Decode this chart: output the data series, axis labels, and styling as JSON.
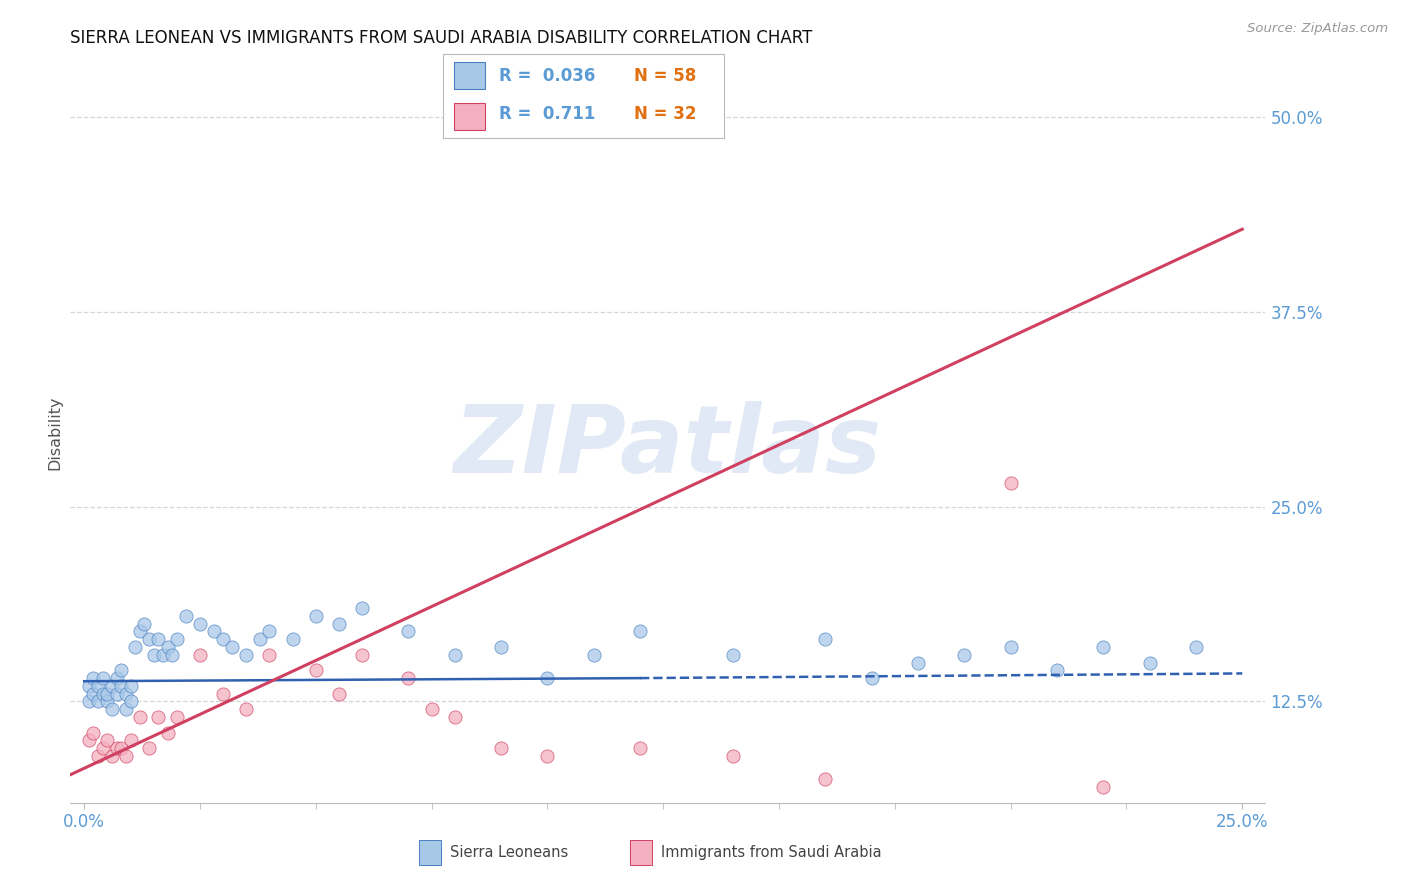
{
  "title": "SIERRA LEONEAN VS IMMIGRANTS FROM SAUDI ARABIA DISABILITY CORRELATION CHART",
  "source": "Source: ZipAtlas.com",
  "ylabel": "Disability",
  "yticks": [
    0.125,
    0.25,
    0.375,
    0.5
  ],
  "ytick_labels": [
    "12.5%",
    "25.0%",
    "37.5%",
    "50.0%"
  ],
  "xtick_left": "0.0%",
  "xtick_right": "25.0%",
  "xlim": [
    -0.003,
    0.255
  ],
  "ylim": [
    0.06,
    0.535
  ],
  "legend_r1": "R =  0.036",
  "legend_n1": "N = 58",
  "legend_r2": "R =  0.711",
  "legend_n2": "N = 32",
  "color_blue_fill": "#a8c8e8",
  "color_blue_edge": "#4a80c0",
  "color_pink_fill": "#f4b0c0",
  "color_pink_edge": "#d04060",
  "color_blue_line": "#3060b0",
  "color_pink_line": "#d04060",
  "color_axis_label": "#5b9bd5",
  "color_orange": "#e07010",
  "watermark": "ZIPatlas",
  "blue_scatter_x": [
    0.001,
    0.001,
    0.002,
    0.002,
    0.003,
    0.003,
    0.004,
    0.004,
    0.005,
    0.005,
    0.006,
    0.006,
    0.007,
    0.007,
    0.008,
    0.008,
    0.009,
    0.009,
    0.01,
    0.01,
    0.011,
    0.012,
    0.013,
    0.014,
    0.015,
    0.016,
    0.017,
    0.018,
    0.019,
    0.02,
    0.022,
    0.025,
    0.028,
    0.03,
    0.032,
    0.035,
    0.038,
    0.04,
    0.045,
    0.05,
    0.055,
    0.06,
    0.07,
    0.08,
    0.09,
    0.1,
    0.11,
    0.12,
    0.14,
    0.16,
    0.17,
    0.18,
    0.19,
    0.2,
    0.21,
    0.22,
    0.23,
    0.24
  ],
  "blue_scatter_y": [
    0.135,
    0.125,
    0.13,
    0.14,
    0.125,
    0.135,
    0.13,
    0.14,
    0.125,
    0.13,
    0.135,
    0.12,
    0.14,
    0.13,
    0.135,
    0.145,
    0.12,
    0.13,
    0.135,
    0.125,
    0.16,
    0.17,
    0.175,
    0.165,
    0.155,
    0.165,
    0.155,
    0.16,
    0.155,
    0.165,
    0.18,
    0.175,
    0.17,
    0.165,
    0.16,
    0.155,
    0.165,
    0.17,
    0.165,
    0.18,
    0.175,
    0.185,
    0.17,
    0.155,
    0.16,
    0.14,
    0.155,
    0.17,
    0.155,
    0.165,
    0.14,
    0.15,
    0.155,
    0.16,
    0.145,
    0.16,
    0.15,
    0.16
  ],
  "pink_scatter_x": [
    0.001,
    0.002,
    0.003,
    0.004,
    0.005,
    0.006,
    0.007,
    0.008,
    0.009,
    0.01,
    0.012,
    0.014,
    0.016,
    0.018,
    0.02,
    0.025,
    0.03,
    0.035,
    0.04,
    0.05,
    0.055,
    0.06,
    0.07,
    0.075,
    0.08,
    0.09,
    0.1,
    0.12,
    0.14,
    0.16,
    0.2,
    0.22
  ],
  "pink_scatter_y": [
    0.1,
    0.105,
    0.09,
    0.095,
    0.1,
    0.09,
    0.095,
    0.095,
    0.09,
    0.1,
    0.115,
    0.095,
    0.115,
    0.105,
    0.115,
    0.155,
    0.13,
    0.12,
    0.155,
    0.145,
    0.13,
    0.155,
    0.14,
    0.12,
    0.115,
    0.095,
    0.09,
    0.095,
    0.09,
    0.075,
    0.265,
    0.07
  ],
  "blue_line_x": [
    0.0,
    0.12,
    0.25
  ],
  "blue_line_y": [
    0.138,
    0.14,
    0.143
  ],
  "pink_line_x": [
    -0.003,
    0.25
  ],
  "pink_line_y": [
    0.078,
    0.428
  ]
}
